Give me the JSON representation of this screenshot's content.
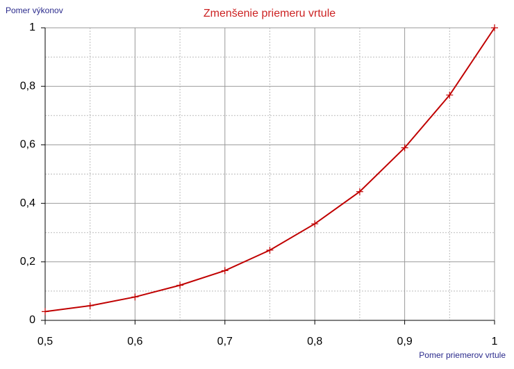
{
  "chart_data": {
    "type": "line",
    "title": "Zmenšenie priemeru vrtule",
    "y_label": "Pomer výkonov",
    "x_label": "Pomer priemerov vrtule",
    "x": [
      0.5,
      0.55,
      0.6,
      0.65,
      0.7,
      0.75,
      0.8,
      0.85,
      0.9,
      0.95,
      1
    ],
    "series": [
      {
        "color": "#c00000",
        "values": [
          0.03,
          0.05,
          0.08,
          0.12,
          0.17,
          0.24,
          0.33,
          0.44,
          0.59,
          0.77,
          1
        ]
      }
    ],
    "xlim": [
      0.5,
      1
    ],
    "ylim": [
      0,
      1
    ],
    "xticks": [
      {
        "value": 0.5,
        "label": "0,5"
      },
      {
        "value": 0.6,
        "label": "0,6"
      },
      {
        "value": 0.7,
        "label": "0,7"
      },
      {
        "value": 0.8,
        "label": "0,8"
      },
      {
        "value": 0.9,
        "label": "0,9"
      },
      1
    ],
    "yticks": [
      0,
      {
        "value": 0.2,
        "label": "0,2"
      },
      {
        "value": 0.4,
        "label": "0,4"
      },
      {
        "value": 0.6,
        "label": "0,6"
      },
      {
        "value": 0.8,
        "label": "0,8"
      },
      1
    ],
    "grid": true
  }
}
